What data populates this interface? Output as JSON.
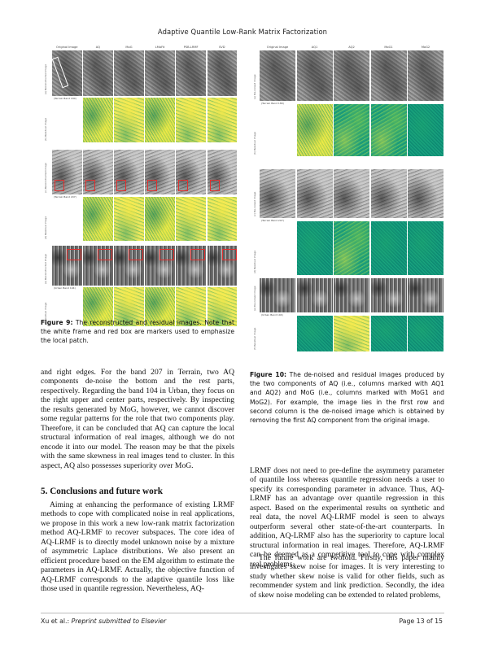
{
  "header": {
    "running_title": "Adaptive Quantile Low-Rank Matrix Factorization"
  },
  "figure9": {
    "columns": [
      "Original Image",
      "AQ",
      "MoG",
      "LMaFit",
      "PSB-LRMF",
      "SVD"
    ],
    "rows": [
      {
        "label": "(a) Reconstructed image",
        "caption": "(Terrain Band 180)",
        "type": "gray"
      },
      {
        "label": "(b) Residual image",
        "caption": "",
        "type": "residual"
      },
      {
        "label": "(c) Reconstructed image",
        "caption": "(Terrain Band 207)",
        "type": "gray"
      },
      {
        "label": "(d) Residual image",
        "caption": "",
        "type": "residual"
      },
      {
        "label": "(e) Reconstructed image",
        "caption": "(Urban Band 104)",
        "type": "gray"
      },
      {
        "label": "(f) Residual image",
        "caption": "",
        "type": "residual"
      }
    ],
    "caption_label": "Figure 9:",
    "caption_text": "The reconstructed and residual images. Note that the white frame and red box are markers used to emphasize the local patch."
  },
  "figure10": {
    "columns": [
      "Original Image",
      "AQ1",
      "AQ2",
      "MoG1",
      "MoG2"
    ],
    "rows": [
      {
        "label": "(a) De-noised image",
        "caption": "(Terrain Band 180)",
        "type": "gray"
      },
      {
        "label": "(b) Residual image",
        "caption": "",
        "type": "residual"
      },
      {
        "label": "(c) De-noised image",
        "caption": "(Terrain Band 207)",
        "type": "gray"
      },
      {
        "label": "(d) Residual image",
        "caption": "",
        "type": "residual"
      },
      {
        "label": "(e) De-noised image",
        "caption": "(Urban Band 104)",
        "type": "gray"
      },
      {
        "label": "(f) Residual image",
        "caption": "",
        "type": "residual"
      }
    ],
    "caption_label": "Figure 10:",
    "caption_text": "The de-noised and residual images produced by the two components of AQ (i.e., columns marked with AQ1 and AQ2) and MoG (i.e., columns marked with MoG1 and MoG2). For example, the image lies in the first row and second column is the de-noised image which is obtained by removing the first AQ component from the original image."
  },
  "left_column": {
    "para1": "and right edges. For the band 207 in Terrain, two AQ components de-noise the bottom and the rest parts, respectively. Regarding the band 104 in Urban, they focus on the right upper and center parts, respectively. By inspecting the results generated by MoG, however, we cannot discover some regular patterns for the role that two components play. Therefore, it can be concluded that AQ can capture the local structural information of real images, although we do not encode it into our model. The reason may be that the pixels with the same skewness in real images tend to cluster. In this aspect, AQ also possesses superiority over MoG.",
    "section_title": "5. Conclusions and future work",
    "para2": "Aiming at enhancing the performance of existing LRMF methods to cope with complicated noise in real applications, we propose in this work a new low-rank matrix factorization method AQ-LRMF to recover subspaces. The core idea of AQ-LRMF is to directly model unknown noise by a mixture of asymmetric Laplace distributions. We also present an efficient procedure based on the EM algorithm to estimate the parameters in AQ-LRMF. Actually, the objective function of AQ-LRMF corresponds to the adaptive quantile loss like those used in quantile regression. Nevertheless, AQ-"
  },
  "right_column": {
    "para1": "LRMF does not need to pre-define the asymmetry parameter of quantile loss whereas quantile regression needs a user to specify its corresponding parameter in advance. Thus, AQ-LRMF has an advantage over quantile regression in this aspect. Based on the experimental results on synthetic and real data, the novel AQ-LRMF model is seen to always outperform several other state-of-the-art counterparts. In addition, AQ-LRMF also has the superiority to capture local structural information in real images. Therefore, AQ-LRMF can be deemed as a competitive tool to cope with complex real problems.",
    "para2": "The future work are twofold. Firstly, this paper mainly investigates skew noise for images. It is very interesting to study whether skew noise is valid for other fields, such as recommender system and link prediction. Secondly, the idea of skew noise modeling can be extended to related problems,"
  },
  "footer": {
    "authors": "Xu et al.:",
    "venue": "Preprint submitted to Elsevier",
    "page": "Page 13 of 15"
  }
}
